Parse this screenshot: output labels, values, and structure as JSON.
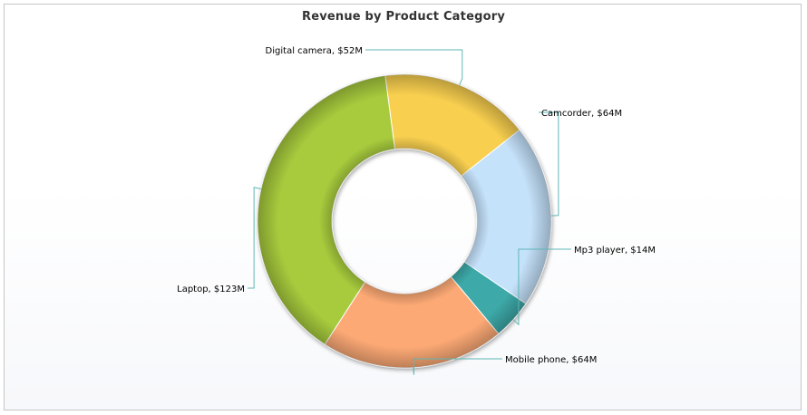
{
  "chart_data": {
    "type": "pie",
    "variant": "doughnut",
    "title": "Revenue by Product Category",
    "legend": "none",
    "slices": [
      {
        "name": "Camcorder",
        "value": 64,
        "label": "Camcorder, $64M",
        "color": "#c5e2fb"
      },
      {
        "name": "Mp3 player",
        "value": 14,
        "label": "Mp3 player, $14M",
        "color": "#3da9a8"
      },
      {
        "name": "Mobile phone",
        "value": 64,
        "label": "Mobile phone, $64M",
        "color": "#fca974"
      },
      {
        "name": "Laptop",
        "value": 123,
        "label": "Laptop, $123M",
        "color": "#a7cb3e"
      },
      {
        "name": "Digital camera",
        "value": 52,
        "label": "Digital camera, $52M",
        "color": "#f8cf4f"
      }
    ]
  }
}
